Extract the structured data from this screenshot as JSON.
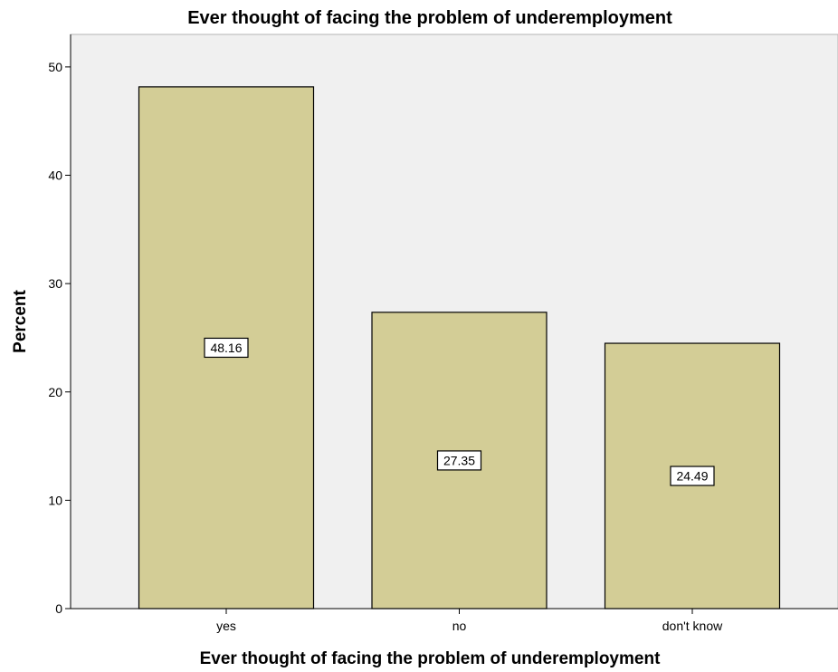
{
  "chart_data": {
    "type": "bar",
    "title": "Ever thought of facing the problem of underemployment",
    "xlabel": "Ever thought of facing the problem of underemployment",
    "ylabel": "Percent",
    "categories": [
      "yes",
      "no",
      "don't know"
    ],
    "values": [
      48.16,
      27.35,
      24.49
    ],
    "data_labels": [
      "48.16",
      "27.35",
      "24.49"
    ],
    "ylim": [
      0,
      53
    ],
    "yticks": [
      0,
      10,
      20,
      30,
      40,
      50
    ],
    "grid": false,
    "legend": "none",
    "colors": {
      "plot_background": "#f0f0f0",
      "bar_fill": "#d3cd96",
      "bar_stroke": "#000000"
    }
  }
}
